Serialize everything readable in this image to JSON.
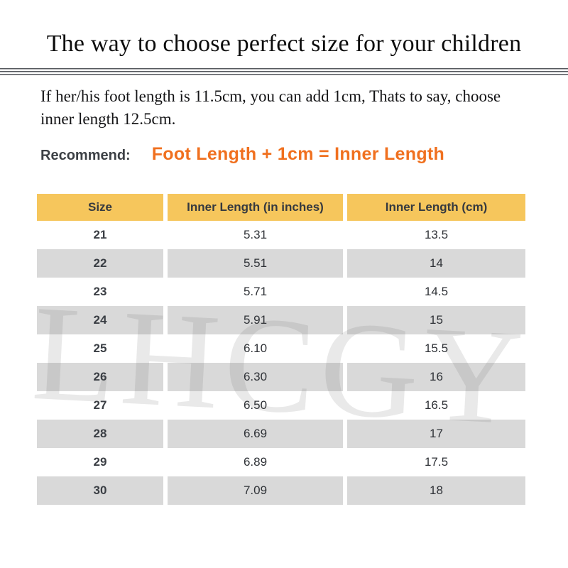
{
  "header": {
    "title": "The way to choose perfect size for your children"
  },
  "intro": {
    "lines": [
      "If her/his foot length is 11.5cm, you can add 1cm, Thats to say, choose",
      "inner length 12.5cm."
    ]
  },
  "recommend": {
    "label": "Recommend:",
    "formula": "Foot Length + 1cm = Inner Length"
  },
  "watermark": "LHCGY",
  "size_table": {
    "columns": [
      "Size",
      "Inner Length (in inches)",
      "Inner Length (cm)"
    ],
    "rows": [
      {
        "size": "21",
        "inches": "5.31",
        "cm": "13.5"
      },
      {
        "size": "22",
        "inches": "5.51",
        "cm": "14"
      },
      {
        "size": "23",
        "inches": "5.71",
        "cm": "14.5"
      },
      {
        "size": "24",
        "inches": "5.91",
        "cm": "15"
      },
      {
        "size": "25",
        "inches": "6.10",
        "cm": "15.5"
      },
      {
        "size": "26",
        "inches": "6.30",
        "cm": "16"
      },
      {
        "size": "27",
        "inches": "6.50",
        "cm": "16.5"
      },
      {
        "size": "28",
        "inches": "6.69",
        "cm": "17"
      },
      {
        "size": "29",
        "inches": "6.89",
        "cm": "17.5"
      },
      {
        "size": "30",
        "inches": "7.09",
        "cm": "18"
      }
    ]
  },
  "colors": {
    "header_bg": "#f6c65c",
    "row_alt_bg": "#d9d9d9",
    "accent_orange": "#f0701f",
    "rule_line": "#54575c"
  }
}
